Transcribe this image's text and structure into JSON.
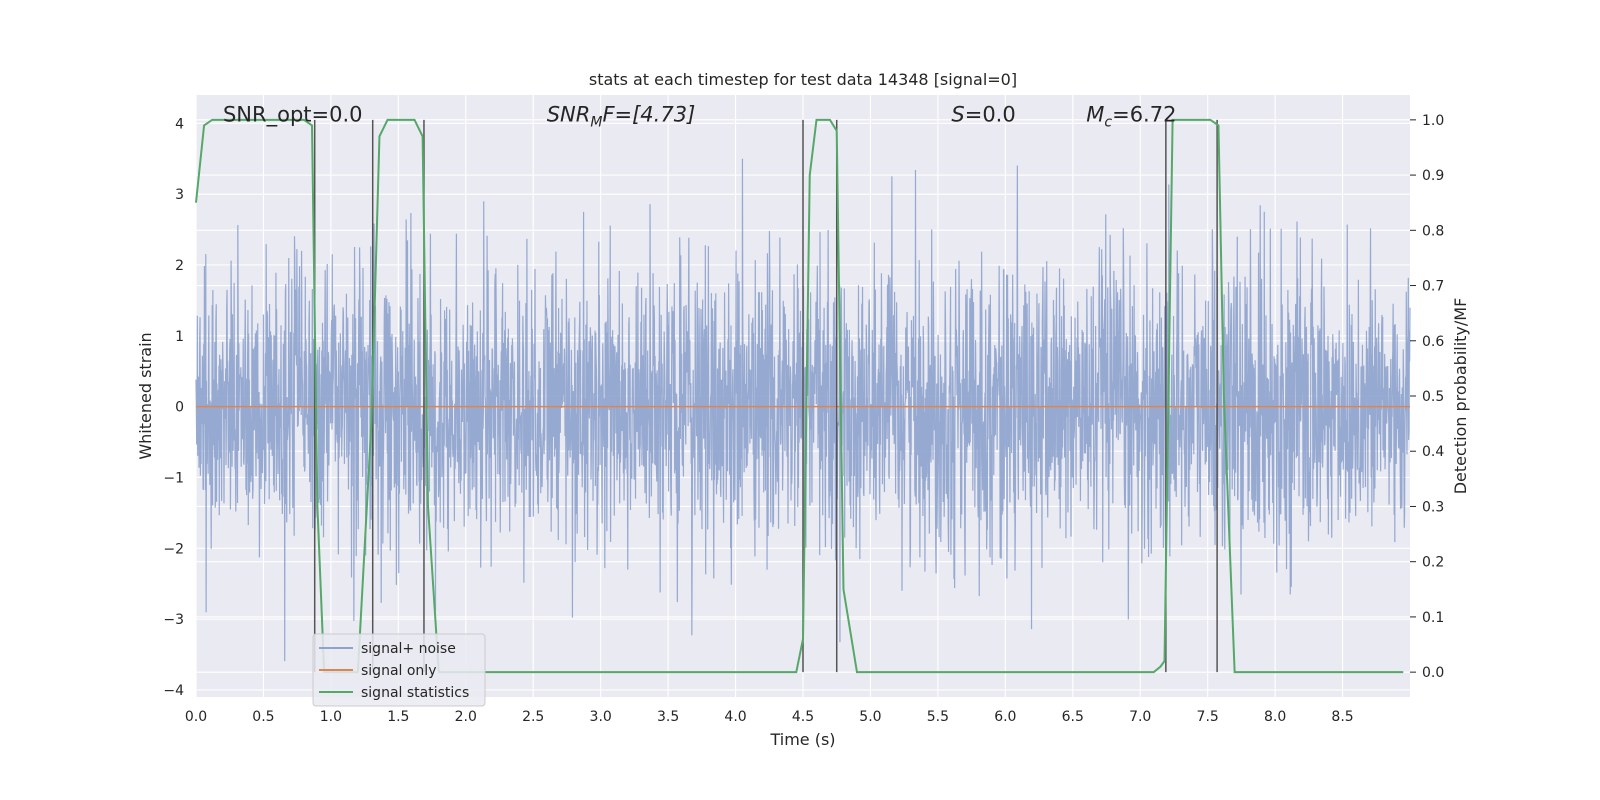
{
  "chart_data": {
    "type": "line",
    "title": "stats at each timestep for test data 14348 [signal=0]",
    "xlabel": "Time (s)",
    "ylabel_left": "Whitened strain",
    "ylabel_right": "Detection probability/MF",
    "xlim": [
      0.0,
      9.0
    ],
    "ylim_left": [
      -4.1,
      4.4
    ],
    "ylim_right": [
      -0.045,
      1.045
    ],
    "grid": true,
    "legend_position": "lower-left",
    "x_ticks": [
      "0.0",
      "0.5",
      "1.0",
      "1.5",
      "2.0",
      "2.5",
      "3.0",
      "3.5",
      "4.0",
      "4.5",
      "5.0",
      "5.5",
      "6.0",
      "6.5",
      "7.0",
      "7.5",
      "8.0",
      "8.5"
    ],
    "y_ticks_left": [
      "4",
      "3",
      "2",
      "1",
      "0",
      "−1",
      "−2",
      "−3",
      "−4"
    ],
    "y_ticks_right": [
      "1.0",
      "0.9",
      "0.8",
      "0.7",
      "0.6",
      "0.5",
      "0.4",
      "0.3",
      "0.2",
      "0.1",
      "0.0"
    ],
    "annotations": {
      "snr_opt": "SNR_opt=0.0",
      "snr_mf_pre": "SNR",
      "snr_mf_sub": "M",
      "snr_mf_post": "F=[4.73]",
      "s_pre": "S",
      "s_post": "=0.0",
      "mc_pre": "M",
      "mc_sub": "c",
      "mc_post": "=6.72"
    },
    "series": [
      {
        "name": "signal+ noise",
        "color": "#8da2cd",
        "axis": "left",
        "kind": "noise",
        "x_range": [
          0.0,
          9.0
        ],
        "typical_std": 1.0,
        "peak_range": [
          -3.7,
          3.5
        ]
      },
      {
        "name": "signal only",
        "color": "#dd8452",
        "axis": "left",
        "x": [
          0.0,
          9.0
        ],
        "y": [
          0.0,
          0.0
        ]
      },
      {
        "name": "signal statistics",
        "color": "#55a868",
        "axis": "right",
        "x": [
          0.0,
          0.06,
          0.12,
          0.5,
          0.8,
          0.86,
          0.9,
          0.95,
          1.0,
          1.2,
          1.3,
          1.36,
          1.42,
          1.62,
          1.68,
          1.72,
          1.8,
          4.2,
          4.45,
          4.5,
          4.55,
          4.6,
          4.7,
          4.75,
          4.8,
          4.9,
          7.1,
          7.15,
          7.18,
          7.24,
          7.3,
          7.52,
          7.58,
          7.62,
          7.7,
          8.9,
          8.95
        ],
        "y": [
          0.85,
          0.99,
          1.0,
          1.0,
          1.0,
          0.99,
          0.3,
          0.0,
          0.0,
          0.0,
          0.45,
          0.97,
          1.0,
          1.0,
          0.97,
          0.3,
          0.0,
          0.0,
          0.0,
          0.06,
          0.9,
          1.0,
          1.0,
          0.98,
          0.15,
          0.0,
          0.0,
          0.01,
          0.02,
          1.0,
          1.0,
          1.0,
          0.99,
          0.5,
          0.0,
          0.0,
          0.0
        ]
      }
    ],
    "vertical_lines": [
      0.88,
      1.31,
      1.69,
      4.5,
      4.75,
      7.19,
      7.57
    ],
    "vertical_line_range_right": [
      0.0,
      1.0
    ],
    "vertical_line_color": "#555555"
  }
}
